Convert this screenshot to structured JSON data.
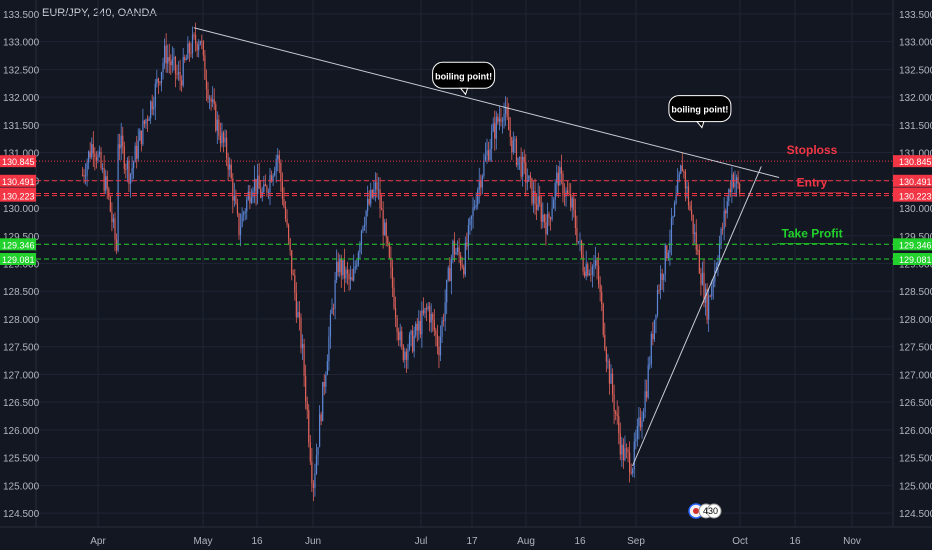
{
  "header": {
    "symbol_title": "EUR/JPY, 240, OANDA"
  },
  "chart_data": {
    "type": "candlestick",
    "title": "EUR/JPY, 240, OANDA",
    "ylim": [
      124.25,
      133.75
    ],
    "grid": true,
    "x_ticks": [
      "Apr",
      "May",
      "16",
      "Jun",
      "Jul",
      "17",
      "Aug",
      "16",
      "Sep",
      "Oct",
      "16",
      "Nov"
    ],
    "y_ticks": [
      "133.500",
      "133.000",
      "132.500",
      "132.000",
      "131.500",
      "131.000",
      "130.500",
      "130.000",
      "129.500",
      "129.000",
      "128.500",
      "128.000",
      "127.500",
      "127.000",
      "126.500",
      "126.000",
      "125.500",
      "125.000",
      "124.500"
    ],
    "price_series": {
      "points": [
        [
          "Mar 20",
          130.6
        ],
        [
          "Mar 23",
          131.2
        ],
        [
          "Mar 27",
          130.3
        ],
        [
          "Mar 30",
          129.1
        ],
        [
          "Apr 03",
          130.8
        ],
        [
          "Apr 06",
          131.4
        ],
        [
          "Apr 10",
          130.6
        ],
        [
          "Apr 13",
          131.3
        ],
        [
          "Apr 17",
          132.1
        ],
        [
          "Apr 20",
          132.8
        ],
        [
          "Apr 24",
          132.3
        ],
        [
          "Apr 27",
          132.9
        ],
        [
          "Apr 30",
          133.1
        ],
        [
          "May 01",
          132.6
        ],
        [
          "May 04",
          131.7
        ],
        [
          "May 08",
          130.9
        ],
        [
          "May 11",
          129.6
        ],
        [
          "May 15",
          130.5
        ],
        [
          "May 18",
          130.2
        ],
        [
          "May 22",
          131.0
        ],
        [
          "May 25",
          129.4
        ],
        [
          "May 29",
          127.4
        ],
        [
          "Jun 01",
          125.0
        ],
        [
          "Jun 05",
          127.4
        ],
        [
          "Jun 08",
          129.0
        ],
        [
          "Jun 12",
          128.6
        ],
        [
          "Jun 15",
          129.8
        ],
        [
          "Jun 19",
          130.4
        ],
        [
          "Jun 22",
          129.2
        ],
        [
          "Jun 26",
          127.4
        ],
        [
          "Jun 29",
          127.6
        ],
        [
          "Jul 03",
          128.2
        ],
        [
          "Jul 06",
          127.5
        ],
        [
          "Jul 10",
          129.3
        ],
        [
          "Jul 13",
          129.0
        ],
        [
          "Jul 17",
          130.4
        ],
        [
          "Jul 21",
          131.3
        ],
        [
          "Jul 24",
          131.8
        ],
        [
          "Jul 27",
          131.1
        ],
        [
          "Jul 31",
          130.5
        ],
        [
          "Aug 03",
          130.2
        ],
        [
          "Aug 07",
          129.7
        ],
        [
          "Aug 10",
          130.6
        ],
        [
          "Aug 14",
          130.0
        ],
        [
          "Aug 17",
          129.0
        ],
        [
          "Aug 21",
          128.9
        ],
        [
          "Aug 24",
          127.2
        ],
        [
          "Aug 28",
          125.6
        ],
        [
          "Aug 31",
          125.4
        ],
        [
          "Sep 04",
          126.8
        ],
        [
          "Sep 07",
          128.5
        ],
        [
          "Sep 11",
          129.6
        ],
        [
          "Sep 14",
          130.8
        ],
        [
          "Sep 18",
          129.3
        ],
        [
          "Sep 21",
          128.2
        ],
        [
          "Sep 25",
          129.5
        ],
        [
          "Sep 28",
          130.6
        ],
        [
          "Oct 01",
          130.3
        ]
      ]
    },
    "horizontal_levels": [
      {
        "label": "Stoploss",
        "value": 130.845,
        "color": "#f23645"
      },
      {
        "label": "",
        "value": 130.491,
        "color": "#f23645"
      },
      {
        "label": "Entry",
        "value": 130.262,
        "color": "#f23645"
      },
      {
        "label": "",
        "value": 130.223,
        "color": "#f23645"
      },
      {
        "label": "Take Profit",
        "value": 129.346,
        "color": "#22d12b"
      },
      {
        "label": "",
        "value": 129.081,
        "color": "#22d12b"
      }
    ],
    "trendlines": [
      {
        "from": [
          "Apr 28",
          133.25
        ],
        "to": [
          "Oct 12",
          130.55
        ]
      },
      {
        "from": [
          "Aug 31",
          125.35
        ],
        "to": [
          "Oct 07",
          130.75
        ]
      }
    ],
    "annotations": [
      {
        "text": "boiling point!",
        "at": [
          "Jul 13",
          132.05
        ]
      },
      {
        "text": "boiling point!",
        "at": [
          "Sep 19",
          131.45
        ]
      }
    ]
  },
  "footer": {
    "badge_count": "430"
  },
  "colors": {
    "background": "#131722",
    "grid": "#1f2434",
    "axis_text": "#b2b5be",
    "candle_up": "#5d87d6",
    "candle_down": "#e0625a",
    "stop_red": "#f23645",
    "take_green": "#22d12b",
    "trendline": "#c9ccd6"
  }
}
